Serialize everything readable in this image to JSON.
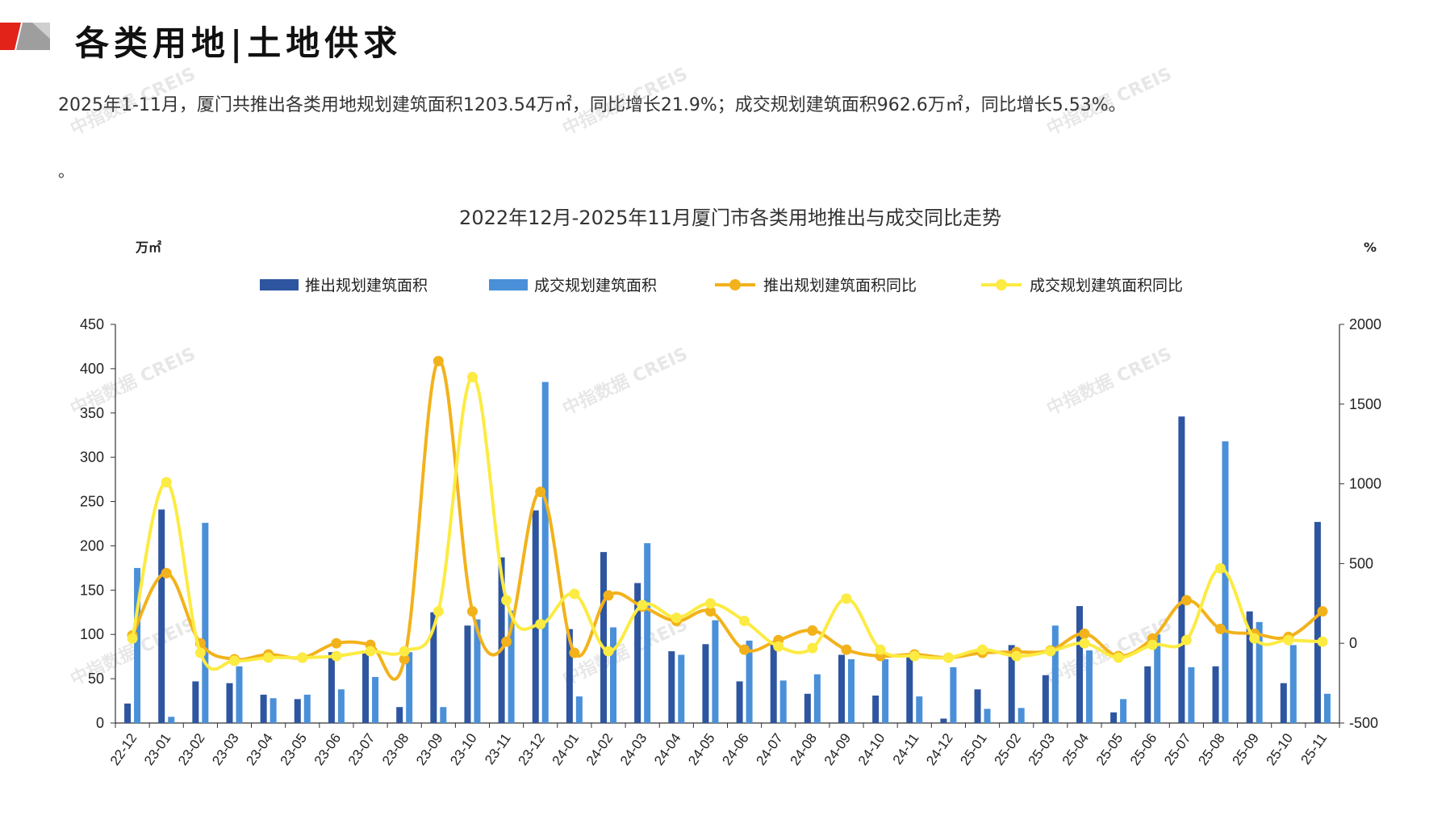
{
  "header": {
    "title": "各类用地|土地供求"
  },
  "summary": {
    "text": "2025年1-11月，厦门共推出各类用地规划建筑面积1203.54万㎡，同比增长21.9%；成交规划建筑面积962.6万㎡，同比增长5.53%。",
    "trailing": "。"
  },
  "watermark_text": "中指数据 CREIS",
  "colors": {
    "supply_bar": "#2E55A0",
    "deal_bar": "#4A90D9",
    "supply_line": "#F2B21B",
    "deal_line": "#FCEB42",
    "logo_red": "#E2231A",
    "logo_gray": "#9E9E9E"
  },
  "chart_data": {
    "type": "bar",
    "title": "2022年12月-2025年11月厦门市各类用地推出与成交同比走势",
    "ylabel_left": "万㎡",
    "ylabel_right": "%",
    "ylim_left": [
      0,
      450
    ],
    "ylim_right": [
      -500,
      2000
    ],
    "yticks_left": [
      "0",
      "50",
      "100",
      "150",
      "200",
      "250",
      "300",
      "350",
      "400",
      "450"
    ],
    "yticks_right": [
      "-500",
      "0",
      "500",
      "1000",
      "1500",
      "2000"
    ],
    "categories": [
      "22-12",
      "23-01",
      "23-02",
      "23-03",
      "23-04",
      "23-05",
      "23-06",
      "23-07",
      "23-08",
      "23-09",
      "23-10",
      "23-11",
      "23-12",
      "24-01",
      "24-02",
      "24-03",
      "24-04",
      "24-05",
      "24-06",
      "24-07",
      "24-08",
      "24-09",
      "24-10",
      "24-11",
      "24-12",
      "25-01",
      "25-02",
      "25-03",
      "25-04",
      "25-05",
      "25-06",
      "25-07",
      "25-08",
      "25-09",
      "25-10",
      "25-11"
    ],
    "legend_position": "top",
    "series": [
      {
        "name": "推出规划建筑面积",
        "kind": "bar",
        "axis": "left",
        "values": [
          22,
          241,
          47,
          45,
          32,
          27,
          80,
          82,
          18,
          125,
          110,
          187,
          240,
          106,
          193,
          158,
          81,
          89,
          47,
          90,
          33,
          77,
          31,
          76,
          5,
          38,
          88,
          54,
          132,
          12,
          64,
          346,
          64,
          126,
          45,
          227
        ]
      },
      {
        "name": "成交规划建筑面积",
        "kind": "bar",
        "axis": "left",
        "values": [
          175,
          7,
          226,
          64,
          28,
          32,
          38,
          52,
          80,
          18,
          117,
          127,
          385,
          30,
          108,
          203,
          77,
          116,
          93,
          48,
          55,
          72,
          72,
          30,
          63,
          16,
          17,
          110,
          82,
          27,
          100,
          63,
          318,
          114,
          88,
          33
        ]
      },
      {
        "name": "推出规划建筑面积同比",
        "kind": "line",
        "axis": "right",
        "values": [
          50,
          440,
          0,
          -100,
          -70,
          -90,
          0,
          -10,
          -100,
          1770,
          200,
          10,
          950,
          -60,
          300,
          230,
          140,
          200,
          -40,
          20,
          80,
          -40,
          -80,
          -70,
          -90,
          -60,
          -55,
          -45,
          60,
          -80,
          30,
          270,
          90,
          60,
          40,
          200
        ]
      },
      {
        "name": "成交规划建筑面积同比",
        "kind": "line",
        "axis": "right",
        "values": [
          30,
          1010,
          -60,
          -110,
          -90,
          -90,
          -80,
          -50,
          -50,
          200,
          1670,
          270,
          120,
          310,
          -50,
          240,
          160,
          250,
          140,
          -20,
          -30,
          280,
          -40,
          -80,
          -90,
          -40,
          -80,
          -50,
          0,
          -90,
          -10,
          20,
          470,
          30,
          20,
          10
        ]
      }
    ]
  }
}
